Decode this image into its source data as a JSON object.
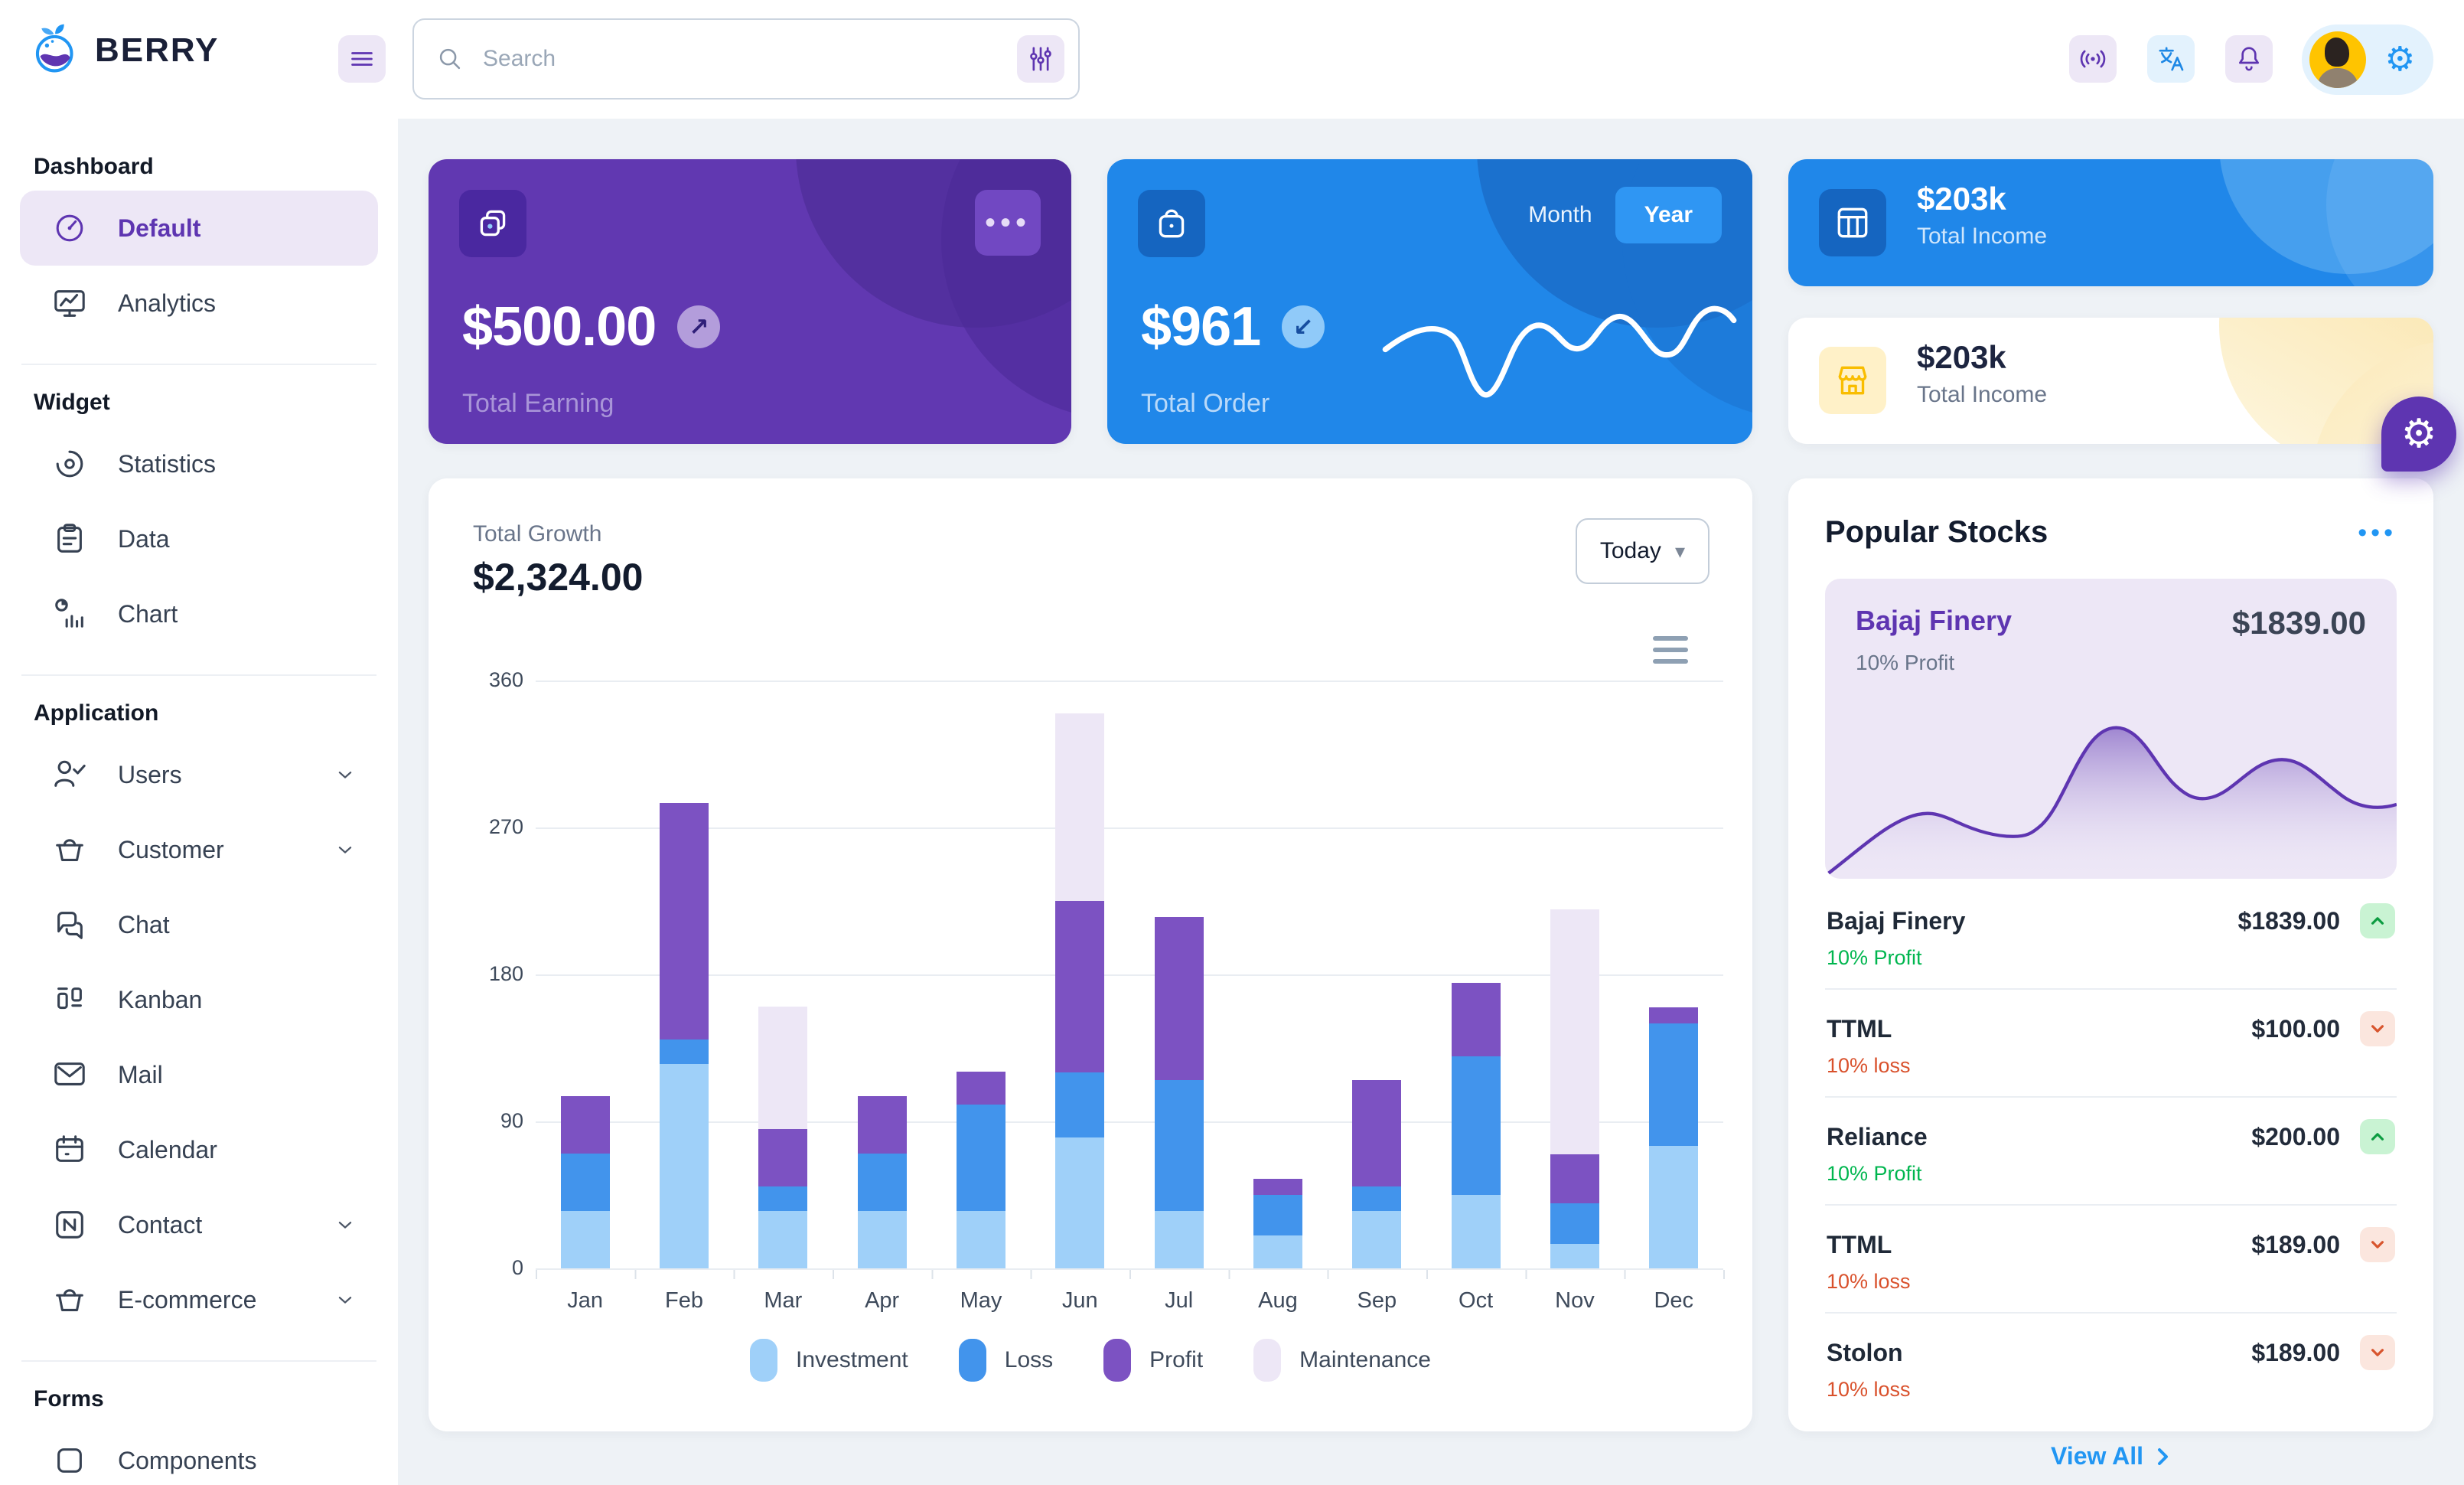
{
  "brand": {
    "name": "BERRY"
  },
  "header": {
    "search": {
      "placeholder": "Search"
    }
  },
  "sidebar": {
    "sections": [
      {
        "title": "Dashboard",
        "items": [
          {
            "label": "Default",
            "icon": "gauge",
            "active": true
          },
          {
            "label": "Analytics",
            "icon": "monitor"
          }
        ]
      },
      {
        "title": "Widget",
        "items": [
          {
            "label": "Statistics",
            "icon": "statistics"
          },
          {
            "label": "Data",
            "icon": "clipboard"
          },
          {
            "label": "Chart",
            "icon": "chart"
          }
        ]
      },
      {
        "title": "Application",
        "items": [
          {
            "label": "Users",
            "icon": "users",
            "chevron": true
          },
          {
            "label": "Customer",
            "icon": "basket",
            "chevron": true
          },
          {
            "label": "Chat",
            "icon": "chat"
          },
          {
            "label": "Kanban",
            "icon": "kanban"
          },
          {
            "label": "Mail",
            "icon": "mail"
          },
          {
            "label": "Calendar",
            "icon": "calendar"
          },
          {
            "label": "Contact",
            "icon": "contact",
            "chevron": true
          },
          {
            "label": "E-commerce",
            "icon": "basket",
            "chevron": true
          }
        ]
      },
      {
        "title": "Forms",
        "items": [
          {
            "label": "Components",
            "icon": "box"
          }
        ]
      }
    ]
  },
  "cards": {
    "earning": {
      "value": "$500.00",
      "label": "Total Earning"
    },
    "order": {
      "value": "$961",
      "label": "Total Order",
      "toggle_month": "Month",
      "toggle_year": "Year",
      "active_toggle": "Year"
    },
    "income_blue": {
      "value": "$203k",
      "label": "Total Income"
    },
    "income_white": {
      "value": "$203k",
      "label": "Total Income"
    }
  },
  "growth": {
    "label": "Total Growth",
    "value": "$2,324.00",
    "period": "Today"
  },
  "chart_data": {
    "type": "bar",
    "stacked": true,
    "title": "Total Growth",
    "categories": [
      "Jan",
      "Feb",
      "Mar",
      "Apr",
      "May",
      "Jun",
      "Jul",
      "Aug",
      "Sep",
      "Oct",
      "Nov",
      "Dec"
    ],
    "series": [
      {
        "name": "Investment",
        "color": "#9fd0f9",
        "values": [
          35,
          125,
          35,
          35,
          35,
          80,
          35,
          20,
          35,
          45,
          15,
          75
        ]
      },
      {
        "name": "Loss",
        "color": "#4294ec",
        "values": [
          35,
          15,
          15,
          35,
          65,
          40,
          80,
          25,
          15,
          85,
          25,
          75
        ]
      },
      {
        "name": "Profit",
        "color": "#7c52c2",
        "values": [
          35,
          145,
          35,
          35,
          20,
          105,
          100,
          10,
          65,
          45,
          30,
          10
        ]
      },
      {
        "name": "Maintenance",
        "color": "#ede7f6",
        "values": [
          0,
          0,
          75,
          0,
          0,
          115,
          0,
          0,
          0,
          0,
          150,
          0
        ]
      }
    ],
    "xlabel": "",
    "ylabel": "",
    "ylim": [
      0,
      360
    ],
    "yticks": [
      0,
      90,
      180,
      270,
      360
    ],
    "grid": true,
    "legend_position": "bottom"
  },
  "stocks": {
    "title": "Popular Stocks",
    "featured": {
      "name": "Bajaj Finery",
      "price": "$1839.00",
      "change": "10% Profit"
    },
    "rows": [
      {
        "name": "Bajaj Finery",
        "price": "$1839.00",
        "change": "10% Profit",
        "direction": "up"
      },
      {
        "name": "TTML",
        "price": "$100.00",
        "change": "10% loss",
        "direction": "down"
      },
      {
        "name": "Reliance",
        "price": "$200.00",
        "change": "10% Profit",
        "direction": "up"
      },
      {
        "name": "TTML",
        "price": "$189.00",
        "change": "10% loss",
        "direction": "down"
      },
      {
        "name": "Stolon",
        "price": "$189.00",
        "change": "10% loss",
        "direction": "down"
      }
    ],
    "view_all": "View All"
  },
  "colors": {
    "primary": "#2196f3",
    "secondary": "#5e35b1",
    "success": "#00c853",
    "error": "#d84315",
    "warning": "#ffc107",
    "background": "#eef2f6"
  }
}
